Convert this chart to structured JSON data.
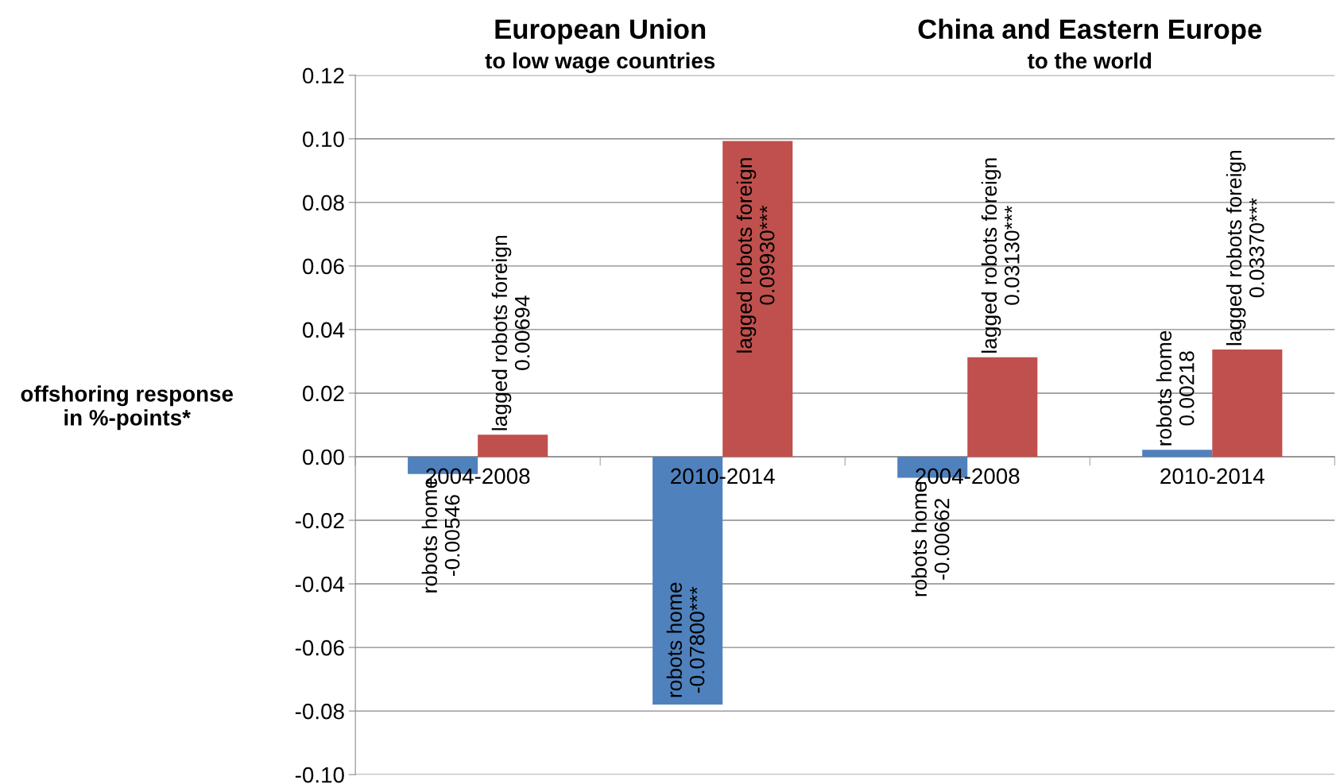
{
  "chart_data": {
    "type": "bar",
    "categories": [
      "2004-2008",
      "2010-2014",
      "2004-2008",
      "2010-2014"
    ],
    "series": [
      {
        "name": "robots home",
        "color": "#4f81bd",
        "values": [
          -0.00546,
          -0.078,
          -0.00662,
          0.00218
        ],
        "value_labels": [
          "-0.00546",
          "-0.07800***",
          "-0.00662",
          "0.00218"
        ]
      },
      {
        "name": "lagged robots foreign",
        "color": "#c0504d",
        "values": [
          0.00694,
          0.0993,
          0.0313,
          0.0337
        ],
        "value_labels": [
          "0.00694",
          "0.09930***",
          "0.03130***",
          "0.03370***"
        ]
      }
    ],
    "ylabel": "offshoring response\nin %-points*",
    "annotations": [
      "European Union",
      "to low wage countries",
      "China and Eastern Europe",
      "to the world"
    ],
    "ylim": [
      -0.1,
      0.12
    ],
    "yticks": [
      {
        "value": -0.1,
        "label": "-0.10"
      },
      {
        "value": -0.08,
        "label": "-0.08"
      },
      {
        "value": -0.06,
        "label": "-0.06"
      },
      {
        "value": -0.04,
        "label": "-0.04"
      },
      {
        "value": -0.02,
        "label": "-0.02"
      },
      {
        "value": 0,
        "label": "0.00"
      },
      {
        "value": 0.02,
        "label": "0.02"
      },
      {
        "value": 0.04,
        "label": "0.04"
      },
      {
        "value": 0.06,
        "label": "0.06"
      },
      {
        "value": 0.08,
        "label": "0.08"
      },
      {
        "value": 0.1,
        "label": "0.10"
      },
      {
        "value": 0.12,
        "label": "0.12"
      }
    ],
    "grid": "y",
    "legend": false
  }
}
